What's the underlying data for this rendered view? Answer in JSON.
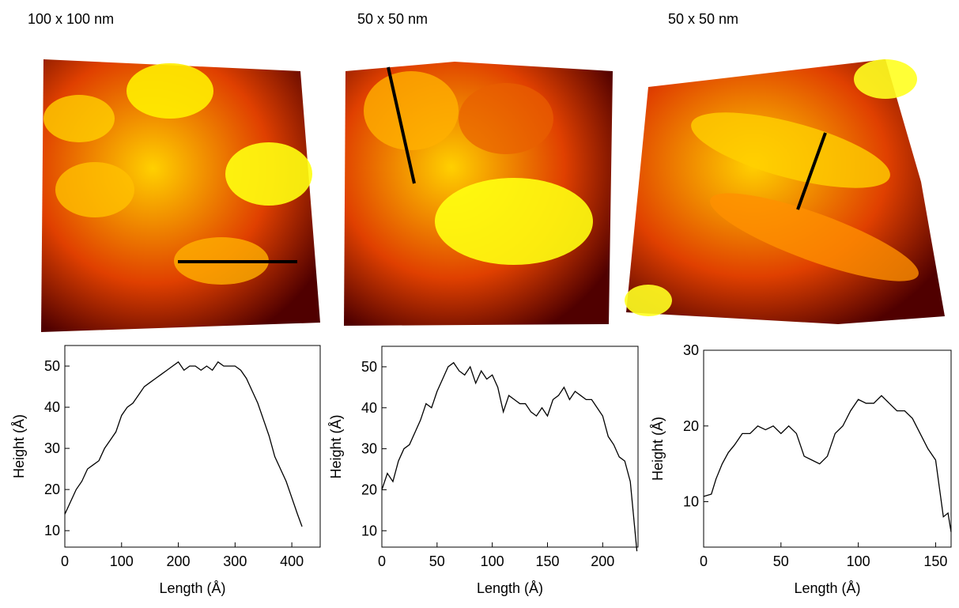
{
  "chart_data": [
    {
      "type": "line",
      "title": "100 x 100 nm",
      "x_label": "Length (Å)",
      "y_label": "Height (Å)",
      "color": "#000000",
      "xlim": [
        0,
        450
      ],
      "xticks": [
        0,
        100,
        200,
        300,
        400
      ],
      "ylim": [
        6,
        55
      ],
      "yticks": [
        10,
        20,
        30,
        40,
        50
      ],
      "x": [
        0,
        10,
        20,
        30,
        40,
        50,
        60,
        70,
        80,
        90,
        100,
        110,
        120,
        130,
        140,
        150,
        160,
        170,
        180,
        190,
        200,
        210,
        220,
        230,
        240,
        250,
        260,
        270,
        280,
        290,
        300,
        310,
        320,
        330,
        340,
        350,
        360,
        370,
        380,
        390,
        400,
        410,
        418
      ],
      "series": [
        {
          "values": [
            14,
            17,
            20,
            22,
            25,
            26,
            27,
            30,
            32,
            34,
            38,
            40,
            41,
            43,
            45,
            46,
            47,
            48,
            49,
            50,
            51,
            49,
            50,
            50,
            49,
            50,
            49,
            51,
            50,
            50,
            50,
            49,
            47,
            44,
            41,
            37,
            33,
            28,
            25,
            22,
            18,
            14,
            11
          ]
        }
      ]
    },
    {
      "type": "line",
      "title": "50 x 50 nm",
      "x_label": "Length (Å)",
      "y_label": "Height (Å)",
      "color": "#000000",
      "xlim": [
        0,
        232
      ],
      "xticks": [
        0,
        50,
        100,
        150,
        200
      ],
      "ylim": [
        6,
        55
      ],
      "yticks": [
        10,
        20,
        30,
        40,
        50
      ],
      "x": [
        0,
        5,
        10,
        15,
        20,
        25,
        30,
        35,
        40,
        45,
        50,
        55,
        60,
        65,
        70,
        75,
        80,
        85,
        90,
        95,
        100,
        105,
        110,
        115,
        120,
        125,
        130,
        135,
        140,
        145,
        150,
        155,
        160,
        165,
        170,
        175,
        180,
        185,
        190,
        195,
        200,
        205,
        210,
        215,
        220,
        225,
        231
      ],
      "series": [
        {
          "values": [
            20,
            24,
            22,
            27,
            30,
            31,
            34,
            37,
            41,
            40,
            44,
            47,
            50,
            51,
            49,
            48,
            50,
            46,
            49,
            47,
            48,
            45,
            39,
            43,
            42,
            41,
            41,
            39,
            38,
            40,
            38,
            42,
            43,
            45,
            42,
            44,
            43,
            42,
            42,
            40,
            38,
            33,
            31,
            28,
            27,
            22,
            5
          ]
        }
      ]
    },
    {
      "type": "line",
      "title": "50 x 50 nm",
      "x_label": "Length (Å)",
      "y_label": "Height (Å)",
      "color": "#000000",
      "xlim": [
        0,
        160
      ],
      "xticks": [
        0,
        50,
        100,
        150
      ],
      "ylim": [
        4,
        30
      ],
      "yticks": [
        10,
        20,
        30
      ],
      "x": [
        0,
        5,
        8,
        12,
        16,
        20,
        25,
        30,
        35,
        40,
        45,
        50,
        55,
        60,
        65,
        70,
        75,
        80,
        85,
        90,
        95,
        100,
        105,
        110,
        115,
        120,
        125,
        130,
        135,
        140,
        145,
        150,
        153,
        155,
        158,
        160
      ],
      "series": [
        {
          "values": [
            10.7,
            11,
            13,
            15,
            16.5,
            17.5,
            19,
            19,
            20,
            19.5,
            20,
            19,
            20,
            19,
            16,
            15.5,
            15,
            16,
            19,
            20,
            22,
            23.5,
            23,
            23,
            24,
            23,
            22,
            22,
            21,
            19,
            17,
            15.5,
            11,
            8,
            8.5,
            6
          ]
        }
      ]
    }
  ]
}
